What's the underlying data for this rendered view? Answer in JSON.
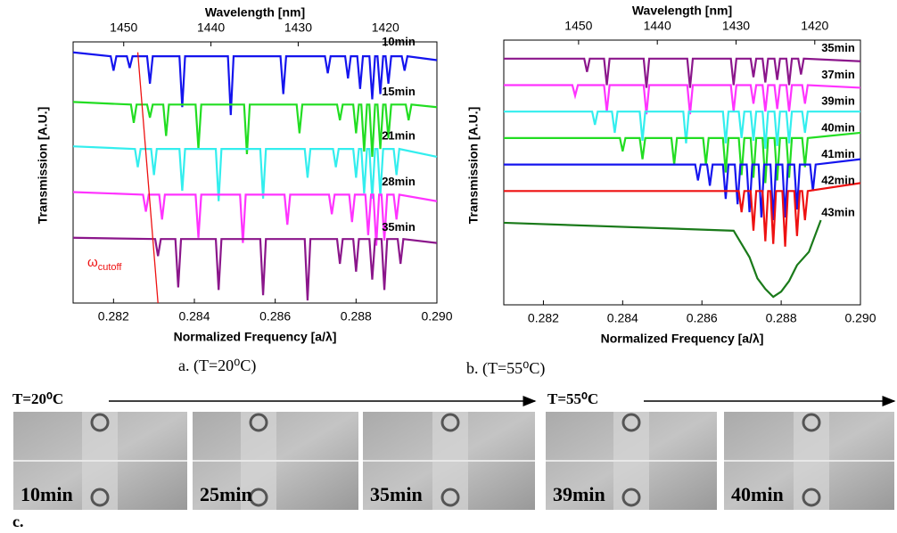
{
  "chart_data": [
    {
      "type": "line",
      "x_label": "Normalized Frequency [a/λ]",
      "x2_label": "Wavelength [nm]",
      "y_label": "Transmission [A.U.]",
      "xlim": [
        0.281,
        0.29
      ],
      "xticks": [
        0.282,
        0.284,
        0.286,
        0.288,
        {
          "value": 0.29,
          "label": "0.290"
        }
      ],
      "x2lim": [
        1455.8,
        1414.1
      ],
      "x2ticks": [
        1450,
        1440,
        1430,
        1420
      ],
      "ylim": [
        0,
        10
      ],
      "series": [
        {
          "name": "10min",
          "color": "#1414ee",
          "x": [
            0.281,
            0.28193,
            0.282,
            0.28207,
            0.28233,
            0.2824,
            0.28247,
            0.28283,
            0.2829,
            0.28297,
            0.28363,
            0.2837,
            0.28377,
            0.28483,
            0.2849,
            0.28497,
            0.28613,
            0.2862,
            0.28627,
            0.28723,
            0.2873,
            0.28737,
            0.28773,
            0.2878,
            0.28787,
            0.28803,
            0.2881,
            0.28817,
            0.28833,
            0.2884,
            0.28847,
            0.28853,
            0.2886,
            0.28867,
            0.28873,
            0.2888,
            0.28887,
            0.28913,
            0.2892,
            0.28927,
            0.29
          ],
          "values": [
            9.6,
            9.45,
            8.9,
            9.45,
            9.45,
            9.0,
            9.45,
            9.45,
            8.4,
            9.45,
            9.45,
            7.5,
            9.45,
            9.45,
            7.2,
            9.45,
            9.45,
            8.0,
            9.45,
            9.45,
            8.8,
            9.45,
            9.45,
            8.6,
            9.45,
            9.45,
            8.2,
            9.45,
            9.45,
            7.8,
            9.45,
            9.45,
            8.0,
            9.45,
            9.45,
            8.4,
            9.45,
            9.45,
            8.9,
            9.45,
            9.3
          ]
        },
        {
          "name": "15min",
          "color": "#22dd22",
          "x": [
            0.281,
            0.28243,
            0.2825,
            0.28257,
            0.28283,
            0.2829,
            0.28297,
            0.28323,
            0.2833,
            0.28337,
            0.28403,
            0.2841,
            0.28417,
            0.28523,
            0.2853,
            0.28537,
            0.28653,
            0.2866,
            0.28667,
            0.28753,
            0.2876,
            0.28767,
            0.28793,
            0.288,
            0.28807,
            0.28813,
            0.2882,
            0.28827,
            0.28833,
            0.2884,
            0.28847,
            0.28853,
            0.2886,
            0.28867,
            0.28873,
            0.2888,
            0.28887,
            0.28923,
            0.2893,
            0.28937,
            0.29
          ],
          "values": [
            7.7,
            7.6,
            6.9,
            7.6,
            7.6,
            7.1,
            7.6,
            7.6,
            6.4,
            7.6,
            7.6,
            5.9,
            7.6,
            7.6,
            5.7,
            7.6,
            7.6,
            6.5,
            7.6,
            7.6,
            7.0,
            7.6,
            7.6,
            6.5,
            7.6,
            7.6,
            5.8,
            7.6,
            7.6,
            5.6,
            7.6,
            7.6,
            5.9,
            7.6,
            7.6,
            6.3,
            7.6,
            7.6,
            7.0,
            7.6,
            7.5
          ]
        },
        {
          "name": "21min",
          "color": "#33eeee",
          "x": [
            0.281,
            0.28253,
            0.2826,
            0.28267,
            0.28293,
            0.283,
            0.28307,
            0.28363,
            0.2837,
            0.28377,
            0.28453,
            0.2846,
            0.28467,
            0.28563,
            0.2857,
            0.28577,
            0.28673,
            0.2868,
            0.28687,
            0.28743,
            0.2875,
            0.28757,
            0.28793,
            0.288,
            0.28807,
            0.28813,
            0.2882,
            0.28827,
            0.28833,
            0.2884,
            0.28847,
            0.28853,
            0.2886,
            0.28867,
            0.28893,
            0.289,
            0.28907,
            0.29
          ],
          "values": [
            6.0,
            5.9,
            5.2,
            5.9,
            5.9,
            4.9,
            5.9,
            5.9,
            4.3,
            5.9,
            5.9,
            3.9,
            5.9,
            5.9,
            4.0,
            5.9,
            5.9,
            4.8,
            5.9,
            5.9,
            5.2,
            5.9,
            5.9,
            4.8,
            5.9,
            5.9,
            4.2,
            5.9,
            5.9,
            4.0,
            5.9,
            5.9,
            4.1,
            5.9,
            5.9,
            4.9,
            5.9,
            5.6
          ]
        },
        {
          "name": "28min",
          "color": "#ff33ff",
          "x": [
            0.281,
            0.28273,
            0.2828,
            0.28287,
            0.28313,
            0.2832,
            0.28327,
            0.28403,
            0.2841,
            0.28417,
            0.28513,
            0.2852,
            0.28527,
            0.28623,
            0.2863,
            0.28637,
            0.28733,
            0.2874,
            0.28747,
            0.28783,
            0.2879,
            0.28797,
            0.28823,
            0.2883,
            0.28837,
            0.28843,
            0.2885,
            0.28857,
            0.28863,
            0.2887,
            0.28877,
            0.28893,
            0.289,
            0.28907,
            0.29
          ],
          "values": [
            4.25,
            4.15,
            3.5,
            4.15,
            4.15,
            3.2,
            4.15,
            4.15,
            2.5,
            4.15,
            4.15,
            2.3,
            4.15,
            4.15,
            3.0,
            4.15,
            4.15,
            3.4,
            4.15,
            4.15,
            3.1,
            4.15,
            4.15,
            2.6,
            4.15,
            4.15,
            2.2,
            4.15,
            4.15,
            2.4,
            4.15,
            4.15,
            3.2,
            4.15,
            3.9
          ]
        },
        {
          "name": "35min",
          "color": "#8b168b",
          "x": [
            0.281,
            0.28303,
            0.2831,
            0.28317,
            0.28353,
            0.2836,
            0.28367,
            0.28453,
            0.2846,
            0.28467,
            0.28563,
            0.2857,
            0.28577,
            0.28673,
            0.2868,
            0.28687,
            0.28753,
            0.2876,
            0.28767,
            0.28793,
            0.288,
            0.28807,
            0.28833,
            0.2884,
            0.28847,
            0.28863,
            0.2887,
            0.28877,
            0.28903,
            0.2891,
            0.28917,
            0.29
          ],
          "values": [
            2.5,
            2.45,
            1.8,
            2.45,
            2.45,
            0.6,
            2.45,
            2.45,
            0.5,
            2.45,
            2.45,
            0.3,
            2.45,
            2.45,
            0.1,
            2.45,
            2.45,
            1.5,
            2.45,
            2.45,
            1.2,
            2.45,
            2.45,
            0.9,
            2.45,
            2.45,
            0.5,
            2.45,
            2.45,
            1.5,
            2.45,
            2.3
          ]
        }
      ],
      "cutoff": {
        "x": [
          0.2826,
          0.2831
        ],
        "y": [
          9.6,
          0
        ],
        "color": "#ee1111",
        "label": "ω",
        "label_sub": "cutoff"
      }
    },
    {
      "type": "line",
      "x_label": "Normalized Frequency [a/λ]",
      "x2_label": "Wavelength [nm]",
      "y_label": "Transmission [A.U.]",
      "xlim": [
        0.281,
        0.29
      ],
      "xticks": [
        0.282,
        0.284,
        0.286,
        0.288,
        {
          "value": 0.29,
          "label": "0.290"
        }
      ],
      "x2lim": [
        1459.5,
        1414.2
      ],
      "x2ticks": [
        1450,
        1440,
        1430,
        1420
      ],
      "ylim": [
        0,
        10
      ],
      "series": [
        {
          "name": "35min",
          "color": "#8b168b",
          "x": [
            0.281,
            0.28303,
            0.2831,
            0.28317,
            0.28353,
            0.2836,
            0.28367,
            0.28453,
            0.2846,
            0.28467,
            0.28563,
            0.2857,
            0.28577,
            0.28673,
            0.2868,
            0.28687,
            0.28723,
            0.2873,
            0.28737,
            0.28753,
            0.2876,
            0.28767,
            0.28783,
            0.2879,
            0.28797,
            0.28813,
            0.2882,
            0.28827,
            0.28843,
            0.2885,
            0.28857,
            0.29
          ],
          "values": [
            9.3,
            9.3,
            8.8,
            9.3,
            9.3,
            8.3,
            9.3,
            9.3,
            8.2,
            9.3,
            9.3,
            8.2,
            9.3,
            9.3,
            8.3,
            9.3,
            9.3,
            8.6,
            9.3,
            9.3,
            8.4,
            9.3,
            9.3,
            8.5,
            9.3,
            9.3,
            8.3,
            9.3,
            9.3,
            8.7,
            9.3,
            9.2
          ]
        },
        {
          "name": "37min",
          "color": "#ff33ff",
          "x": [
            0.281,
            0.28273,
            0.2828,
            0.28287,
            0.28353,
            0.2836,
            0.28367,
            0.28453,
            0.2846,
            0.28467,
            0.28563,
            0.2857,
            0.28577,
            0.28673,
            0.2868,
            0.28687,
            0.28723,
            0.2873,
            0.28737,
            0.28753,
            0.2876,
            0.28767,
            0.28783,
            0.2879,
            0.28797,
            0.28813,
            0.2882,
            0.28827,
            0.28853,
            0.2886,
            0.28867,
            0.29
          ],
          "values": [
            8.3,
            8.3,
            7.9,
            8.3,
            8.3,
            7.3,
            8.3,
            8.3,
            7.2,
            8.3,
            8.3,
            7.2,
            8.3,
            8.3,
            7.3,
            8.3,
            8.3,
            7.6,
            8.3,
            8.3,
            7.3,
            8.3,
            8.3,
            7.4,
            8.3,
            8.3,
            7.3,
            8.3,
            8.3,
            7.6,
            8.3,
            8.2
          ]
        },
        {
          "name": "39min",
          "color": "#33eeee",
          "x": [
            0.281,
            0.28323,
            0.2833,
            0.28337,
            0.28373,
            0.2838,
            0.28387,
            0.28443,
            0.2845,
            0.28457,
            0.28553,
            0.2856,
            0.28567,
            0.28653,
            0.2866,
            0.28667,
            0.28693,
            0.287,
            0.28707,
            0.28723,
            0.2873,
            0.28737,
            0.28753,
            0.2876,
            0.28767,
            0.28783,
            0.2879,
            0.28797,
            0.28813,
            0.2882,
            0.28827,
            0.28853,
            0.2886,
            0.28867,
            0.29
          ],
          "values": [
            7.3,
            7.3,
            6.8,
            7.3,
            7.3,
            6.5,
            7.3,
            7.3,
            6.2,
            7.3,
            7.3,
            6.1,
            7.3,
            7.3,
            6.1,
            7.3,
            7.3,
            6.3,
            7.3,
            7.3,
            6.2,
            7.3,
            7.3,
            5.9,
            7.3,
            7.3,
            6.0,
            7.3,
            7.3,
            6.1,
            7.3,
            7.3,
            6.5,
            7.3,
            7.3
          ]
        },
        {
          "name": "40min",
          "color": "#22dd22",
          "x": [
            0.281,
            0.28393,
            0.284,
            0.28407,
            0.28443,
            0.2845,
            0.28457,
            0.28523,
            0.2853,
            0.28537,
            0.28603,
            0.2861,
            0.28617,
            0.28653,
            0.2866,
            0.28667,
            0.28693,
            0.287,
            0.28707,
            0.28723,
            0.2873,
            0.28737,
            0.28753,
            0.2876,
            0.28767,
            0.28783,
            0.2879,
            0.28797,
            0.28813,
            0.2882,
            0.28827,
            0.28853,
            0.2886,
            0.28867,
            0.29
          ],
          "values": [
            6.3,
            6.3,
            5.8,
            6.3,
            6.3,
            5.5,
            6.3,
            6.3,
            5.3,
            6.3,
            6.3,
            5.3,
            6.3,
            6.3,
            5.0,
            6.3,
            6.3,
            4.9,
            6.3,
            6.3,
            4.8,
            6.3,
            6.3,
            4.6,
            6.3,
            6.3,
            4.7,
            6.3,
            6.3,
            4.8,
            6.3,
            6.3,
            5.2,
            6.3,
            6.5
          ]
        },
        {
          "name": "41min",
          "color": "#1414ee",
          "x": [
            0.281,
            0.28583,
            0.2859,
            0.28597,
            0.28613,
            0.2862,
            0.28627,
            0.28653,
            0.2866,
            0.28667,
            0.28683,
            0.2869,
            0.28697,
            0.28713,
            0.2872,
            0.28727,
            0.28743,
            0.2875,
            0.28757,
            0.28773,
            0.2878,
            0.28787,
            0.28803,
            0.2881,
            0.28817,
            0.28833,
            0.2884,
            0.28847,
            0.28873,
            0.2888,
            0.28887,
            0.29
          ],
          "values": [
            5.3,
            5.3,
            4.7,
            5.3,
            5.3,
            4.5,
            5.3,
            5.3,
            4.0,
            5.3,
            5.3,
            3.8,
            5.3,
            5.3,
            3.5,
            5.3,
            5.3,
            3.3,
            5.3,
            5.3,
            3.2,
            5.3,
            5.3,
            3.3,
            5.3,
            5.3,
            3.6,
            5.3,
            5.3,
            4.3,
            5.3,
            5.5
          ]
        },
        {
          "name": "42min",
          "color": "#ee1111",
          "x": [
            0.281,
            0.28693,
            0.287,
            0.28707,
            0.28723,
            0.2873,
            0.28737,
            0.28753,
            0.2876,
            0.28767,
            0.28773,
            0.2878,
            0.28787,
            0.28803,
            0.2881,
            0.28817,
            0.28833,
            0.2884,
            0.28847,
            0.28853,
            0.2886,
            0.28867,
            0.29
          ],
          "values": [
            4.3,
            4.3,
            3.5,
            4.3,
            4.3,
            2.8,
            4.3,
            4.3,
            2.4,
            4.3,
            4.3,
            2.3,
            4.3,
            4.3,
            2.2,
            4.3,
            4.3,
            2.6,
            4.3,
            4.3,
            3.2,
            4.3,
            4.6
          ]
        },
        {
          "name": "43min",
          "color": "#1a7a1a",
          "x": [
            0.281,
            0.2868,
            0.2872,
            0.2874,
            0.2876,
            0.2878,
            0.288,
            0.2882,
            0.2884,
            0.2887,
            0.289
          ],
          "values": [
            3.1,
            2.8,
            1.8,
            1.0,
            0.6,
            0.3,
            0.5,
            0.9,
            1.5,
            2.0,
            3.2
          ]
        }
      ]
    }
  ],
  "captions": {
    "a": "a. (T=20⁰C)",
    "b": "b. (T=55⁰C)",
    "c": "c.",
    "arrow_1": "T=20⁰C",
    "arrow_2": "T=55⁰C"
  },
  "photos": [
    "10min",
    "25min",
    "35min",
    "39min",
    "40min"
  ]
}
